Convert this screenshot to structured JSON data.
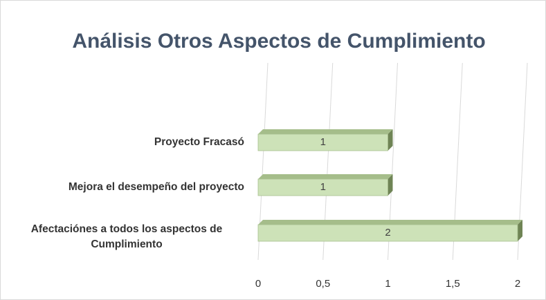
{
  "chart_data": {
    "type": "bar",
    "orientation": "horizontal",
    "title": "Análisis Otros Aspectos de Cumplimiento",
    "categories": [
      "Proyecto Fracasó",
      "Mejora el desempeño del proyecto",
      "Afectaciónes a todos los aspectos de Cumplimiento"
    ],
    "values": [
      1,
      1,
      2
    ],
    "color": "#cde2b8",
    "xlim": [
      0,
      2
    ],
    "xticks": [
      0,
      {
        "value": 0.5,
        "label": "0,5"
      },
      1,
      {
        "value": 1.5,
        "label": "1,5"
      },
      2
    ],
    "grid": true
  }
}
